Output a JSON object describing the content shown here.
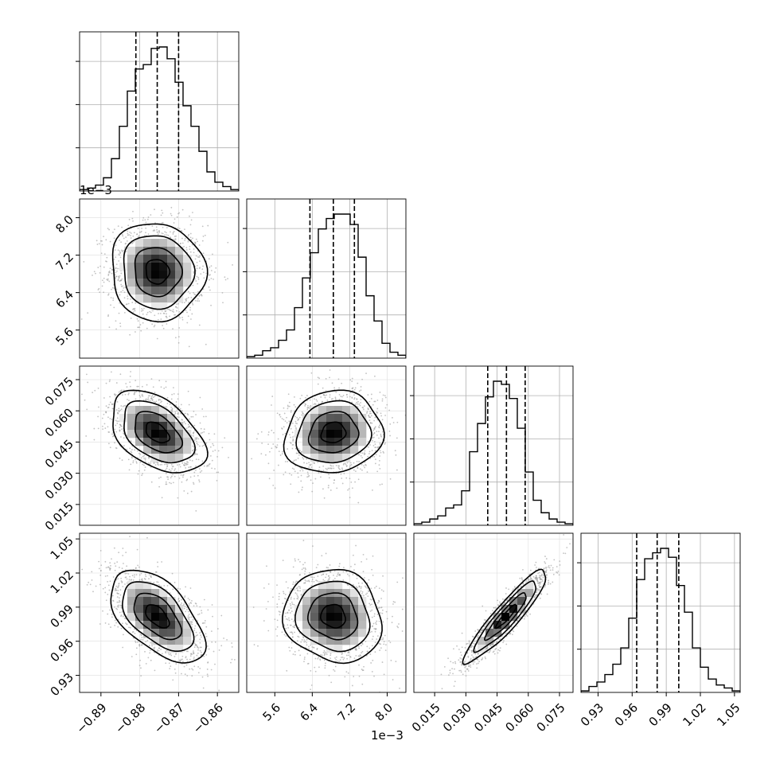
{
  "chart_data": {
    "type": "corner",
    "grid": true,
    "params": [
      {
        "range": [
          -0.8955,
          -0.8545
        ],
        "median": -0.8755,
        "q16": -0.881,
        "q84": -0.87,
        "ticks": [
          -0.89,
          -0.88,
          -0.87,
          -0.86
        ],
        "tick_labels": [
          "−0.89",
          "−0.88",
          "−0.87",
          "−0.86"
        ]
      },
      {
        "range": [
          5.0,
          8.4
        ],
        "median": 6.85,
        "q16": 6.35,
        "q84": 7.3,
        "ticks": [
          5.6,
          6.4,
          7.2,
          8.0
        ],
        "tick_labels": [
          "5.6",
          "6.4",
          "7.2",
          "8.0"
        ],
        "offset_label": "1e−3"
      },
      {
        "range": [
          0.005,
          0.0815
        ],
        "median": 0.0495,
        "q16": 0.0405,
        "q84": 0.0585,
        "ticks": [
          0.015,
          0.03,
          0.045,
          0.06,
          0.075
        ],
        "tick_labels": [
          "0.015",
          "0.030",
          "0.045",
          "0.060",
          "0.075"
        ]
      },
      {
        "range": [
          0.915,
          1.055
        ],
        "median": 0.982,
        "q16": 0.964,
        "q84": 1.001,
        "ticks": [
          0.93,
          0.96,
          0.99,
          1.02,
          1.05
        ],
        "tick_labels": [
          "0.93",
          "0.96",
          "0.99",
          "1.02",
          "1.05"
        ]
      }
    ],
    "histograms": [
      [
        1,
        2,
        4,
        9,
        22,
        44,
        68,
        83,
        86,
        97,
        98,
        90,
        74,
        58,
        44,
        27,
        13,
        6,
        3,
        1
      ],
      [
        1,
        2,
        5,
        7,
        12,
        19,
        34,
        54,
        71,
        87,
        94,
        97,
        97,
        90,
        68,
        42,
        25,
        10,
        4,
        2
      ],
      [
        1,
        2,
        4,
        6,
        11,
        13,
        22,
        47,
        65,
        82,
        92,
        90,
        81,
        62,
        34,
        16,
        8,
        4,
        2,
        1
      ],
      [
        1,
        4,
        7,
        12,
        19,
        30,
        50,
        76,
        90,
        94,
        97,
        91,
        72,
        54,
        30,
        17,
        9,
        5,
        3,
        1
      ]
    ],
    "correlations": {
      "1-0": -0.05,
      "2-0": -0.45,
      "2-1": 0.1,
      "3-0": -0.55,
      "3-1": -0.1,
      "3-2": 0.92
    }
  }
}
